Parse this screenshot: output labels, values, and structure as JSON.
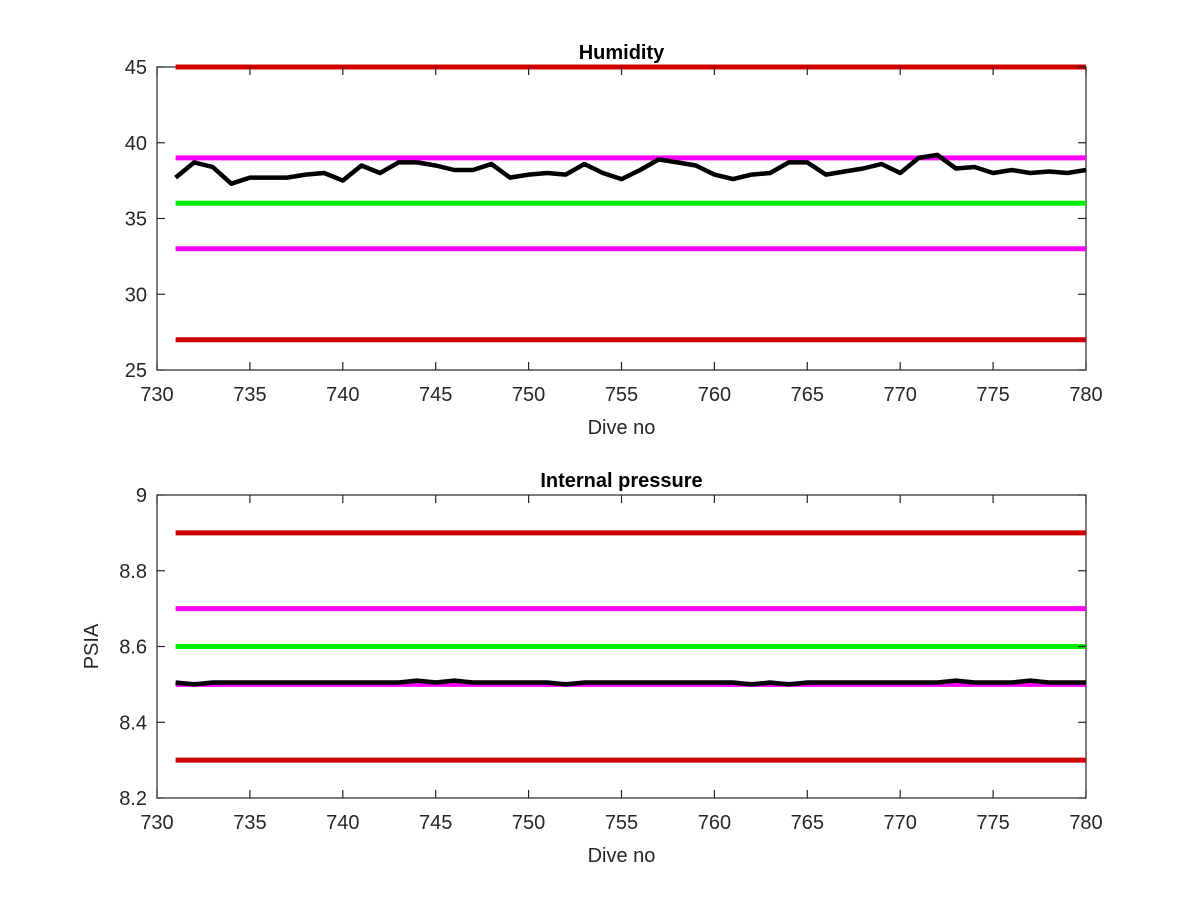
{
  "chart_data": [
    {
      "type": "line",
      "title": "Humidity",
      "xlabel": "Dive no",
      "ylabel": "",
      "xlim": [
        730,
        780
      ],
      "ylim": [
        25,
        45
      ],
      "xticks": [
        730,
        735,
        740,
        745,
        750,
        755,
        760,
        765,
        770,
        775,
        780
      ],
      "yticks": [
        25,
        30,
        35,
        40,
        45
      ],
      "grid": false,
      "series": [
        {
          "role": "measurement",
          "color": "#000000",
          "x": [
            731,
            732,
            733,
            734,
            735,
            736,
            737,
            738,
            739,
            740,
            741,
            742,
            743,
            744,
            745,
            746,
            747,
            748,
            749,
            750,
            751,
            752,
            753,
            754,
            755,
            756,
            757,
            758,
            759,
            760,
            761,
            762,
            763,
            764,
            765,
            766,
            767,
            768,
            769,
            770,
            771,
            772,
            773,
            774,
            775,
            776,
            777,
            778,
            779,
            780
          ],
          "y": [
            37.7,
            38.7,
            38.4,
            37.3,
            37.7,
            37.7,
            37.7,
            37.9,
            38.0,
            37.5,
            38.5,
            38.0,
            38.7,
            38.7,
            38.5,
            38.2,
            38.2,
            38.6,
            37.7,
            37.9,
            38.0,
            37.9,
            38.6,
            38.0,
            37.6,
            38.2,
            38.9,
            38.7,
            38.5,
            37.9,
            37.6,
            37.9,
            38.0,
            38.7,
            38.7,
            37.9,
            38.1,
            38.3,
            38.6,
            38.0,
            39.0,
            39.2,
            38.3,
            38.4,
            38.0,
            38.2,
            38.0,
            38.1,
            38.0,
            38.2
          ]
        },
        {
          "role": "limit",
          "color": "#cc0000",
          "x": [
            731,
            780
          ],
          "y": [
            45,
            45
          ]
        },
        {
          "role": "limit",
          "color": "#ff00ff",
          "x": [
            731,
            780
          ],
          "y": [
            39,
            39
          ]
        },
        {
          "role": "limit",
          "color": "#00ee00",
          "x": [
            731,
            780
          ],
          "y": [
            36,
            36
          ]
        },
        {
          "role": "limit",
          "color": "#ff00ff",
          "x": [
            731,
            780
          ],
          "y": [
            33,
            33
          ]
        },
        {
          "role": "limit",
          "color": "#cc0000",
          "x": [
            731,
            780
          ],
          "y": [
            27,
            27
          ]
        }
      ]
    },
    {
      "type": "line",
      "title": "Internal pressure",
      "xlabel": "Dive no",
      "ylabel": "PSIA",
      "xlim": [
        730,
        780
      ],
      "ylim": [
        8.2,
        9
      ],
      "xticks": [
        730,
        735,
        740,
        745,
        750,
        755,
        760,
        765,
        770,
        775,
        780
      ],
      "yticks": [
        8.2,
        8.4,
        8.6,
        8.8,
        9
      ],
      "grid": false,
      "series": [
        {
          "role": "measurement",
          "color": "#000000",
          "x": [
            731,
            732,
            733,
            734,
            735,
            736,
            737,
            738,
            739,
            740,
            741,
            742,
            743,
            744,
            745,
            746,
            747,
            748,
            749,
            750,
            751,
            752,
            753,
            754,
            755,
            756,
            757,
            758,
            759,
            760,
            761,
            762,
            763,
            764,
            765,
            766,
            767,
            768,
            769,
            770,
            771,
            772,
            773,
            774,
            775,
            776,
            777,
            778,
            779,
            780
          ],
          "y": [
            8.505,
            8.5,
            8.505,
            8.505,
            8.505,
            8.505,
            8.505,
            8.505,
            8.505,
            8.505,
            8.505,
            8.505,
            8.505,
            8.51,
            8.505,
            8.51,
            8.505,
            8.505,
            8.505,
            8.505,
            8.505,
            8.5,
            8.505,
            8.505,
            8.505,
            8.505,
            8.505,
            8.505,
            8.505,
            8.505,
            8.505,
            8.5,
            8.505,
            8.5,
            8.505,
            8.505,
            8.505,
            8.505,
            8.505,
            8.505,
            8.505,
            8.505,
            8.51,
            8.505,
            8.505,
            8.505,
            8.51,
            8.505,
            8.505,
            8.505
          ]
        },
        {
          "role": "limit",
          "color": "#cc0000",
          "x": [
            731,
            780
          ],
          "y": [
            8.9,
            8.9
          ]
        },
        {
          "role": "limit",
          "color": "#ff00ff",
          "x": [
            731,
            780
          ],
          "y": [
            8.7,
            8.7
          ]
        },
        {
          "role": "limit",
          "color": "#00ee00",
          "x": [
            731,
            780
          ],
          "y": [
            8.6,
            8.6
          ]
        },
        {
          "role": "limit",
          "color": "#ff00ff",
          "x": [
            731,
            780
          ],
          "y": [
            8.5,
            8.5
          ]
        },
        {
          "role": "limit",
          "color": "#cc0000",
          "x": [
            731,
            780
          ],
          "y": [
            8.3,
            8.3
          ]
        }
      ]
    }
  ]
}
